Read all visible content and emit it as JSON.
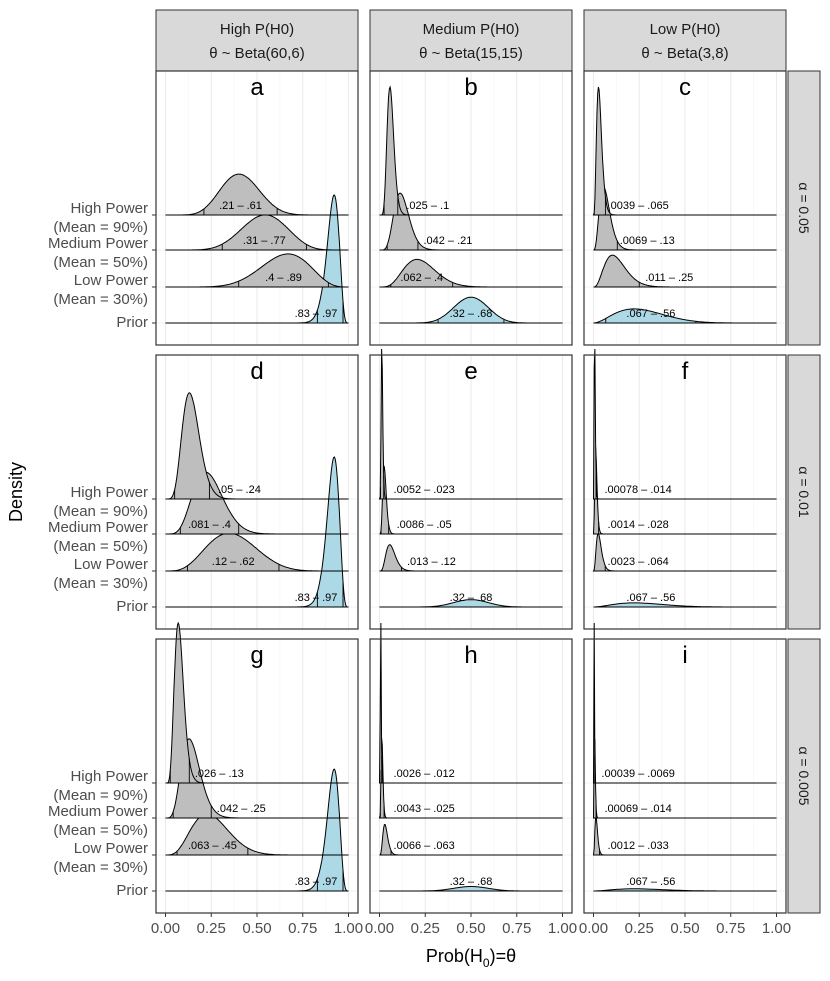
{
  "chart_data": {
    "type": "ridgeline-density-facets",
    "xlabel": "Prob(H₀)=θ",
    "xlabel_main": "Prob(H",
    "xlabel_sub": "0",
    "xlabel_tail": ")=θ",
    "ylabel": "Density",
    "xlim": [
      0,
      1
    ],
    "x_ticks": [
      0,
      0.25,
      0.5,
      0.75,
      1
    ],
    "x_tick_labels": [
      "0.00",
      "0.25",
      "0.50",
      "0.75",
      "1.00"
    ],
    "row_labels": [
      "High Power\n(Mean = 90%)",
      "Medium Power\n(Mean = 50%)",
      "Low Power\n(Mean = 30%)",
      "Prior"
    ],
    "row_label_lines": [
      [
        "High Power",
        "(Mean = 90%)"
      ],
      [
        "Medium Power",
        "(Mean = 50%)"
      ],
      [
        "Low Power",
        "(Mean = 30%)"
      ],
      [
        "Prior"
      ]
    ],
    "col_headers": [
      {
        "line1": "High P(H0)",
        "line2": "θ ~ Beta(60,6)",
        "prior_a": 60,
        "prior_b": 6
      },
      {
        "line1": "Medium P(H0)",
        "line2": "θ ~ Beta(15,15)",
        "prior_a": 15,
        "prior_b": 15
      },
      {
        "line1": "Low P(H0)",
        "line2": "θ ~ Beta(3,8)",
        "prior_a": 3,
        "prior_b": 8
      }
    ],
    "row_strips": [
      "α = 0.05",
      "α = 0.01",
      "α = 0.005"
    ],
    "colors": {
      "posterior_fill": "#bebebe",
      "prior_fill": "#add8e6",
      "strip_fill": "#d9d9d9",
      "grid": "#ebebeb",
      "outline": "#000000",
      "axis_text": "#4d4d4d"
    },
    "panels": [
      {
        "letter": "a",
        "intervals": [
          {
            "label": ".21 – .61",
            "lo": 0.21,
            "hi": 0.61
          },
          {
            "label": ".31 – .77",
            "lo": 0.31,
            "hi": 0.77
          },
          {
            "label": ".4 – .89",
            "lo": 0.4,
            "hi": 0.89
          },
          {
            "label": ".83 – .97",
            "lo": 0.83,
            "hi": 0.97
          }
        ]
      },
      {
        "letter": "b",
        "intervals": [
          {
            "label": ".025 – .1",
            "lo": 0.025,
            "hi": 0.1
          },
          {
            "label": ".042 – .21",
            "lo": 0.042,
            "hi": 0.21
          },
          {
            "label": ".062 – .4",
            "lo": 0.062,
            "hi": 0.4
          },
          {
            "label": ".32 – .68",
            "lo": 0.32,
            "hi": 0.68
          }
        ]
      },
      {
        "letter": "c",
        "intervals": [
          {
            "label": ".0039 – .065",
            "lo": 0.0039,
            "hi": 0.065
          },
          {
            "label": ".0069 – .13",
            "lo": 0.0069,
            "hi": 0.13
          },
          {
            "label": ".011 – .25",
            "lo": 0.011,
            "hi": 0.25
          },
          {
            "label": ".067 – .56",
            "lo": 0.067,
            "hi": 0.56
          }
        ]
      },
      {
        "letter": "d",
        "intervals": [
          {
            "label": ".05 – .24",
            "lo": 0.05,
            "hi": 0.24
          },
          {
            "label": ".081 – .4",
            "lo": 0.081,
            "hi": 0.4
          },
          {
            "label": ".12 – .62",
            "lo": 0.12,
            "hi": 0.62
          },
          {
            "label": ".83 – .97",
            "lo": 0.83,
            "hi": 0.97
          }
        ]
      },
      {
        "letter": "e",
        "intervals": [
          {
            "label": ".0052 – .023",
            "lo": 0.0052,
            "hi": 0.023
          },
          {
            "label": ".0086 – .05",
            "lo": 0.0086,
            "hi": 0.05
          },
          {
            "label": ".013 – .12",
            "lo": 0.013,
            "hi": 0.12
          },
          {
            "label": ".32 – .68",
            "lo": 0.32,
            "hi": 0.68
          }
        ]
      },
      {
        "letter": "f",
        "intervals": [
          {
            "label": ".00078 – .014",
            "lo": 0.00078,
            "hi": 0.014
          },
          {
            "label": ".0014 – .028",
            "lo": 0.0014,
            "hi": 0.028
          },
          {
            "label": ".0023 – .064",
            "lo": 0.0023,
            "hi": 0.064
          },
          {
            "label": ".067 – .56",
            "lo": 0.067,
            "hi": 0.56
          }
        ]
      },
      {
        "letter": "g",
        "intervals": [
          {
            "label": ".026 – .13",
            "lo": 0.026,
            "hi": 0.13
          },
          {
            "label": ".042 – .25",
            "lo": 0.042,
            "hi": 0.25
          },
          {
            "label": ".063 – .45",
            "lo": 0.063,
            "hi": 0.45
          },
          {
            "label": ".83 – .97",
            "lo": 0.83,
            "hi": 0.97
          }
        ]
      },
      {
        "letter": "h",
        "intervals": [
          {
            "label": ".0026 – .012",
            "lo": 0.0026,
            "hi": 0.012
          },
          {
            "label": ".0043 – .025",
            "lo": 0.0043,
            "hi": 0.025
          },
          {
            "label": ".0066 – .063",
            "lo": 0.0066,
            "hi": 0.063
          },
          {
            "label": ".32 – .68",
            "lo": 0.32,
            "hi": 0.68
          }
        ]
      },
      {
        "letter": "i",
        "intervals": [
          {
            "label": ".00039 – .0069",
            "lo": 0.00039,
            "hi": 0.0069
          },
          {
            "label": ".00069 – .014",
            "lo": 0.00069,
            "hi": 0.014
          },
          {
            "label": ".0012 – .033",
            "lo": 0.0012,
            "hi": 0.033
          },
          {
            "label": ".067 – .56",
            "lo": 0.067,
            "hi": 0.56
          }
        ]
      }
    ]
  }
}
